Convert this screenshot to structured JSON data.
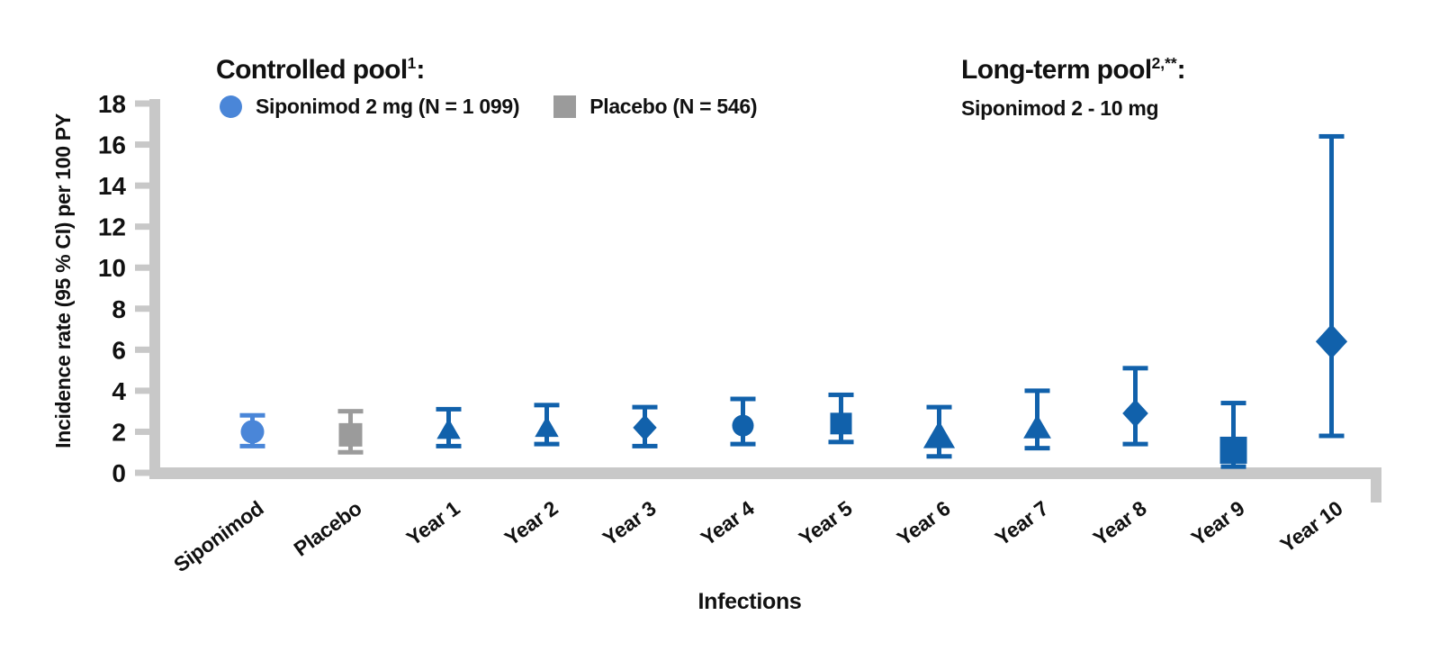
{
  "figure": {
    "controlled_pool": {
      "title": "Controlled pool",
      "superscript": "1",
      "colon": ":"
    },
    "long_term_pool": {
      "title": "Long-term pool",
      "superscript": "2,**",
      "colon": ":",
      "subtitle": "Siponimod 2 - 10 mg"
    },
    "legend": [
      {
        "label": "Siponimod 2 mg (N = 1 099)",
        "marker": "circle",
        "color": "#4a86d8"
      },
      {
        "label": "Placebo (N = 546)",
        "marker": "square",
        "color": "#9b9b9b"
      }
    ]
  },
  "colors": {
    "axis_gray": "#c8c8c8",
    "controlled_blue": "#4a86d8",
    "placebo_gray": "#9b9b9b",
    "longterm_blue": "#1161ab",
    "text": "#111111"
  },
  "chart_data": {
    "type": "scatter",
    "title": "",
    "xlabel": "Infections",
    "ylabel": "Incidence rate (95 % CI) per 100 PY",
    "ylim": [
      0,
      18
    ],
    "yticks": [
      0,
      2,
      4,
      6,
      8,
      10,
      12,
      14,
      16,
      18
    ],
    "grid": false,
    "legend_position": "top",
    "error_bars": "95% CI",
    "categories": [
      "Siponimod",
      "Placebo",
      "Year 1",
      "Year 2",
      "Year 3",
      "Year 4",
      "Year 5",
      "Year 6",
      "Year 7",
      "Year 8",
      "Year 9",
      "Year 10"
    ],
    "points": [
      {
        "category": "Siponimod",
        "group": "controlled",
        "value": 2.0,
        "ci_low": 1.3,
        "ci_high": 2.8,
        "marker": "circle",
        "color": "#4a86d8",
        "marker_size": 13
      },
      {
        "category": "Placebo",
        "group": "controlled",
        "value": 1.85,
        "ci_low": 1.0,
        "ci_high": 3.0,
        "marker": "square",
        "color": "#9b9b9b",
        "marker_size": 13
      },
      {
        "category": "Year 1",
        "group": "long-term",
        "value": 2.1,
        "ci_low": 1.3,
        "ci_high": 3.1,
        "marker": "triangle",
        "color": "#1161ab",
        "marker_size": 12
      },
      {
        "category": "Year 2",
        "group": "long-term",
        "value": 2.2,
        "ci_low": 1.4,
        "ci_high": 3.3,
        "marker": "triangle",
        "color": "#1161ab",
        "marker_size": 12
      },
      {
        "category": "Year 3",
        "group": "long-term",
        "value": 2.2,
        "ci_low": 1.3,
        "ci_high": 3.2,
        "marker": "diamond",
        "color": "#1161ab",
        "marker_size": 12
      },
      {
        "category": "Year 4",
        "group": "long-term",
        "value": 2.3,
        "ci_low": 1.4,
        "ci_high": 3.6,
        "marker": "circle",
        "color": "#1161ab",
        "marker_size": 12
      },
      {
        "category": "Year 5",
        "group": "long-term",
        "value": 2.4,
        "ci_low": 1.5,
        "ci_high": 3.8,
        "marker": "square",
        "color": "#1161ab",
        "marker_size": 12
      },
      {
        "category": "Year 6",
        "group": "long-term",
        "value": 1.8,
        "ci_low": 0.8,
        "ci_high": 3.2,
        "marker": "triangle",
        "color": "#1161ab",
        "marker_size": 16
      },
      {
        "category": "Year 7",
        "group": "long-term",
        "value": 2.2,
        "ci_low": 1.2,
        "ci_high": 4.0,
        "marker": "triangle",
        "color": "#1161ab",
        "marker_size": 14
      },
      {
        "category": "Year 8",
        "group": "long-term",
        "value": 2.9,
        "ci_low": 1.4,
        "ci_high": 5.1,
        "marker": "diamond",
        "color": "#1161ab",
        "marker_size": 13
      },
      {
        "category": "Year 9",
        "group": "long-term",
        "value": 1.1,
        "ci_low": 0.3,
        "ci_high": 3.4,
        "marker": "square",
        "color": "#1161ab",
        "marker_size": 15
      },
      {
        "category": "Year 10",
        "group": "long-term",
        "value": 6.4,
        "ci_low": 1.8,
        "ci_high": 16.4,
        "marker": "diamond",
        "color": "#1161ab",
        "marker_size": 16
      }
    ]
  }
}
